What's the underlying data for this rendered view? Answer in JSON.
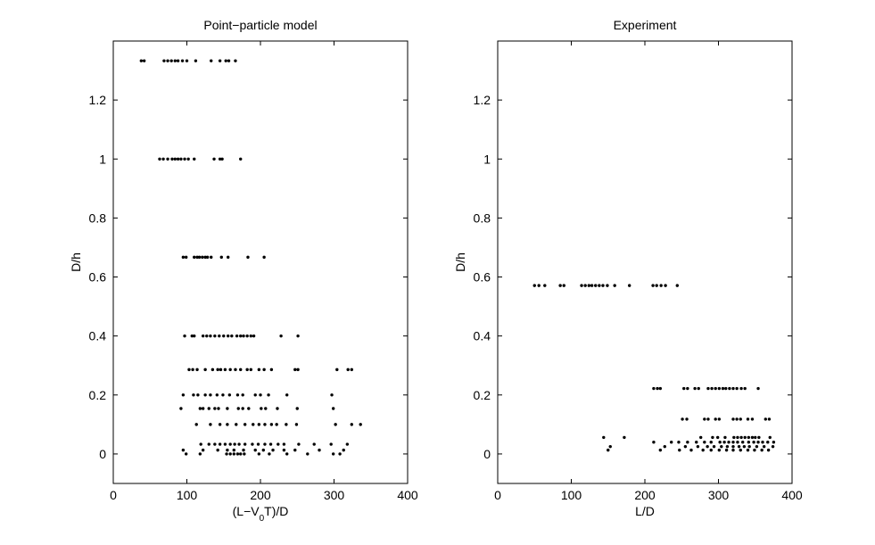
{
  "chart_data": [
    {
      "type": "scatter",
      "title": "Point−particle model",
      "ylabel": "D/h",
      "xlabel": [
        "(L−V",
        "0",
        "T)/D"
      ],
      "xlim": [
        0,
        400
      ],
      "ylim": [
        -0.1,
        1.4
      ],
      "xticks": [
        0,
        100,
        200,
        300,
        400
      ],
      "yticks": [
        0,
        0.2,
        0.4,
        0.6,
        0.8,
        1,
        1.2
      ],
      "color": "#000000",
      "x": [
        38,
        42,
        69,
        74,
        79,
        84,
        88,
        94,
        100,
        112,
        133,
        145,
        153,
        157,
        166,
        63,
        68,
        74,
        80,
        84,
        88,
        92,
        97,
        102,
        110,
        137,
        145,
        148,
        173,
        95,
        99,
        110,
        114,
        117,
        121,
        125,
        128,
        133,
        147,
        156,
        183,
        205,
        97,
        107,
        110,
        122,
        127,
        132,
        138,
        144,
        150,
        156,
        161,
        168,
        173,
        177,
        182,
        187,
        191,
        228,
        251,
        103,
        108,
        114,
        125,
        135,
        142,
        146,
        152,
        159,
        166,
        173,
        182,
        187,
        198,
        205,
        215,
        247,
        251,
        304,
        319,
        324,
        95,
        109,
        115,
        125,
        132,
        141,
        149,
        158,
        169,
        176,
        193,
        200,
        211,
        236,
        297,
        92,
        118,
        122,
        130,
        138,
        143,
        155,
        170,
        176,
        184,
        201,
        207,
        223,
        250,
        299,
        113,
        132,
        145,
        155,
        167,
        179,
        190,
        198,
        206,
        215,
        222,
        235,
        249,
        302,
        324,
        336,
        119,
        130,
        138,
        145,
        152,
        159,
        165,
        171,
        179,
        189,
        197,
        206,
        214,
        224,
        232,
        252,
        273,
        296,
        318,
        95,
        122,
        142,
        155,
        164,
        177,
        193,
        204,
        217,
        232,
        247,
        280,
        313,
        99,
        118,
        154,
        159,
        164,
        169,
        173,
        178,
        198,
        212,
        236,
        264,
        299,
        308
      ],
      "values": [
        1.333,
        1.333,
        1.333,
        1.333,
        1.333,
        1.333,
        1.333,
        1.333,
        1.333,
        1.333,
        1.333,
        1.333,
        1.333,
        1.333,
        1.333,
        1,
        1,
        1,
        1,
        1,
        1,
        1,
        1,
        1,
        1,
        1,
        1,
        1,
        1,
        0.667,
        0.667,
        0.667,
        0.667,
        0.667,
        0.667,
        0.667,
        0.667,
        0.667,
        0.667,
        0.667,
        0.667,
        0.667,
        0.4,
        0.4,
        0.4,
        0.4,
        0.4,
        0.4,
        0.4,
        0.4,
        0.4,
        0.4,
        0.4,
        0.4,
        0.4,
        0.4,
        0.4,
        0.4,
        0.4,
        0.4,
        0.4,
        0.286,
        0.286,
        0.286,
        0.286,
        0.286,
        0.286,
        0.286,
        0.286,
        0.286,
        0.286,
        0.286,
        0.286,
        0.286,
        0.286,
        0.286,
        0.286,
        0.286,
        0.286,
        0.286,
        0.286,
        0.286,
        0.2,
        0.2,
        0.2,
        0.2,
        0.2,
        0.2,
        0.2,
        0.2,
        0.2,
        0.2,
        0.2,
        0.2,
        0.2,
        0.2,
        0.2,
        0.154,
        0.154,
        0.154,
        0.154,
        0.154,
        0.154,
        0.154,
        0.154,
        0.154,
        0.154,
        0.154,
        0.154,
        0.154,
        0.154,
        0.154,
        0.1,
        0.1,
        0.1,
        0.1,
        0.1,
        0.1,
        0.1,
        0.1,
        0.1,
        0.1,
        0.1,
        0.1,
        0.1,
        0.1,
        0.1,
        0.1,
        0.033,
        0.033,
        0.033,
        0.033,
        0.033,
        0.033,
        0.033,
        0.033,
        0.033,
        0.033,
        0.033,
        0.033,
        0.033,
        0.033,
        0.033,
        0.033,
        0.033,
        0.033,
        0.033,
        0.013,
        0.013,
        0.013,
        0.013,
        0.013,
        0.013,
        0.013,
        0.013,
        0.013,
        0.013,
        0.013,
        0.013,
        0.013,
        0,
        0,
        0,
        0,
        0,
        0,
        0,
        0,
        0,
        0,
        0,
        0,
        0,
        0
      ]
    },
    {
      "type": "scatter",
      "title": "Experiment",
      "ylabel": "D/h",
      "xlabel": [
        "L/D"
      ],
      "xlim": [
        0,
        400
      ],
      "ylim": [
        -0.1,
        1.4
      ],
      "xticks": [
        0,
        100,
        200,
        300,
        400
      ],
      "yticks": [
        0,
        0.2,
        0.4,
        0.6,
        0.8,
        1,
        1.2
      ],
      "color": "#000000",
      "x": [
        50,
        56,
        64,
        85,
        90,
        114,
        119,
        124,
        128,
        133,
        138,
        143,
        149,
        159,
        179,
        211,
        216,
        222,
        228,
        244,
        212,
        217,
        221,
        253,
        258,
        268,
        273,
        286,
        291,
        296,
        301,
        306,
        310,
        315,
        320,
        325,
        331,
        336,
        354,
        251,
        257,
        281,
        286,
        296,
        301,
        320,
        325,
        330,
        340,
        346,
        364,
        369,
        144,
        172,
        276,
        292,
        299,
        309,
        321,
        326,
        331,
        336,
        341,
        346,
        350,
        355,
        370,
        212,
        236,
        246,
        258,
        270,
        281,
        290,
        302,
        308,
        314,
        320,
        326,
        333,
        341,
        348,
        354,
        360,
        367,
        375,
        153,
        227,
        255,
        272,
        285,
        294,
        304,
        312,
        320,
        328,
        335,
        342,
        352,
        362,
        374,
        150,
        221,
        247,
        263,
        279,
        290,
        301,
        311,
        320,
        330,
        340,
        349,
        359,
        368
      ],
      "values": [
        0.571,
        0.571,
        0.571,
        0.571,
        0.571,
        0.571,
        0.571,
        0.571,
        0.571,
        0.571,
        0.571,
        0.571,
        0.571,
        0.571,
        0.571,
        0.571,
        0.571,
        0.571,
        0.571,
        0.571,
        0.222,
        0.222,
        0.222,
        0.222,
        0.222,
        0.222,
        0.222,
        0.222,
        0.222,
        0.222,
        0.222,
        0.222,
        0.222,
        0.222,
        0.222,
        0.222,
        0.222,
        0.222,
        0.222,
        0.118,
        0.118,
        0.118,
        0.118,
        0.118,
        0.118,
        0.118,
        0.118,
        0.118,
        0.118,
        0.118,
        0.118,
        0.118,
        0.056,
        0.056,
        0.056,
        0.056,
        0.056,
        0.056,
        0.056,
        0.056,
        0.056,
        0.056,
        0.056,
        0.056,
        0.056,
        0.056,
        0.056,
        0.04,
        0.04,
        0.04,
        0.04,
        0.04,
        0.04,
        0.04,
        0.04,
        0.04,
        0.04,
        0.04,
        0.04,
        0.04,
        0.04,
        0.04,
        0.04,
        0.04,
        0.04,
        0.04,
        0.025,
        0.025,
        0.025,
        0.025,
        0.025,
        0.025,
        0.025,
        0.025,
        0.025,
        0.025,
        0.025,
        0.025,
        0.025,
        0.025,
        0.025,
        0.013,
        0.013,
        0.013,
        0.013,
        0.013,
        0.013,
        0.013,
        0.013,
        0.013,
        0.013,
        0.013,
        0.013,
        0.013,
        0.013
      ]
    }
  ]
}
